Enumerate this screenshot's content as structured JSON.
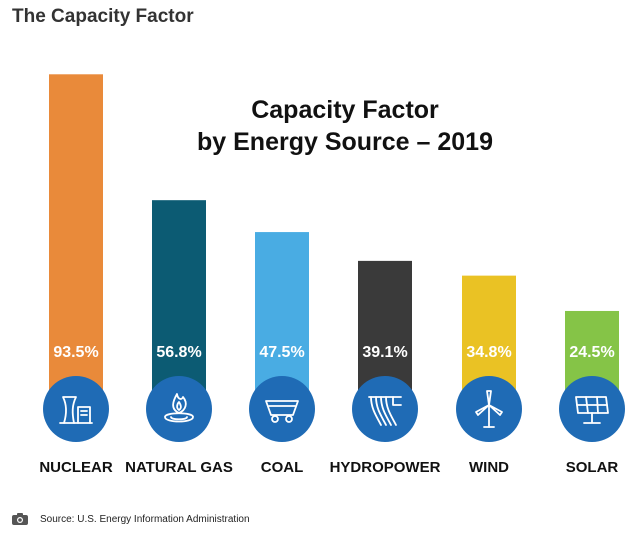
{
  "header": {
    "title": "The Capacity Factor"
  },
  "colors": {
    "circle": "#1f6bb5",
    "bars": [
      "#e98a3a",
      "#0c5b73",
      "#49ace3",
      "#3a3a3a",
      "#eac224",
      "#85c447"
    ]
  },
  "chart_data": {
    "type": "bar",
    "title": "Capacity Factor",
    "subtitle": "by Energy Source – 2019",
    "categories": [
      "NUCLEAR",
      "NATURAL GAS",
      "COAL",
      "HYDROPOWER",
      "WIND",
      "SOLAR"
    ],
    "values": [
      93.5,
      56.8,
      47.5,
      39.1,
      34.8,
      24.5
    ],
    "value_labels": [
      "93.5%",
      "56.8%",
      "47.5%",
      "39.1%",
      "34.8%",
      "24.5%"
    ],
    "icons": [
      "nuclear-plant-icon",
      "gas-flame-icon",
      "coal-cart-icon",
      "dam-icon",
      "wind-turbine-icon",
      "solar-panel-icon"
    ],
    "xlabel": "",
    "ylabel": "",
    "ylim": [
      0,
      100
    ],
    "grid": false,
    "legend": "none"
  },
  "footer": {
    "source": "Source: U.S. Energy Information Administration"
  }
}
